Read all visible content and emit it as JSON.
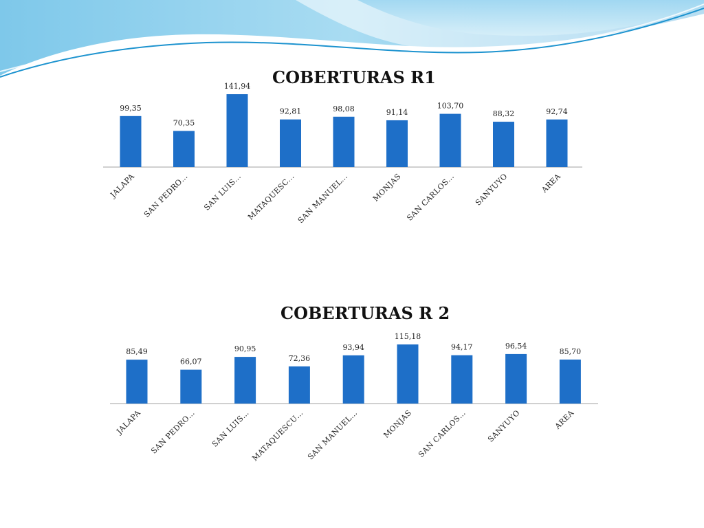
{
  "slide": {
    "colors": {
      "accent": "#1e6fc8",
      "wave_light": "#8fd0f0",
      "wave_dark": "#1f9fd6",
      "axis": "#a0a0a0"
    }
  },
  "chart_data": [
    {
      "type": "bar",
      "title": "COBERTURAS  R1",
      "categories": [
        "JALAPA",
        "SAN PEDRO…",
        "SAN LUIS…",
        "MATAQUESC…",
        "SAN MANUEL…",
        "MONJAS",
        "SAN CARLOS…",
        "SANYUYO",
        "AREA"
      ],
      "values": [
        99.35,
        70.35,
        141.94,
        92.81,
        98.08,
        91.14,
        103.7,
        88.32,
        92.74
      ],
      "value_labels": [
        "99,35",
        "70,35",
        "141,94",
        "92,81",
        "98,08",
        "91,14",
        "103,70",
        "88,32",
        "92,74"
      ],
      "xlabel": "",
      "ylabel": "",
      "ylim": [
        0,
        150
      ],
      "grid": false,
      "legend": "none",
      "color": "#1e6fc8"
    },
    {
      "type": "bar",
      "title": "COBERTURAS R 2",
      "categories": [
        "JALAPA",
        "SAN PEDRO…",
        "SAN LUIS…",
        "MATAQUESCU…",
        "SAN MANUEL…",
        "MONJAS",
        "SAN CARLOS…",
        "SANYUYO",
        "AREA"
      ],
      "values": [
        85.49,
        66.07,
        90.95,
        72.36,
        93.94,
        115.18,
        94.17,
        96.54,
        85.7
      ],
      "value_labels": [
        "85,49",
        "66,07",
        "90,95",
        "72,36",
        "93,94",
        "115,18",
        "94,17",
        "96,54",
        "85,70"
      ],
      "xlabel": "",
      "ylabel": "",
      "ylim": [
        0,
        150
      ],
      "grid": false,
      "legend": "none",
      "color": "#1e6fc8"
    }
  ]
}
